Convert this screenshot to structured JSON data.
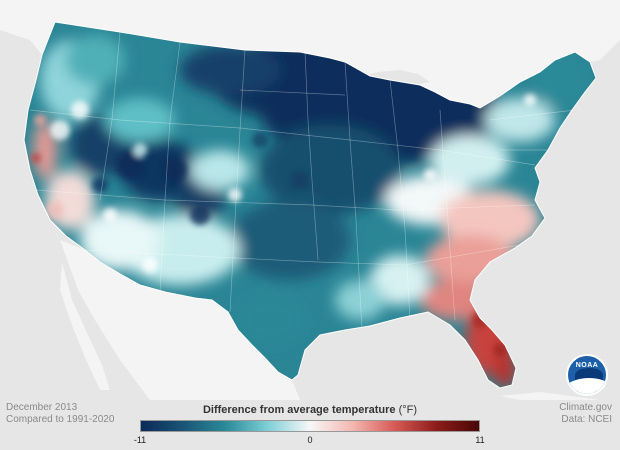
{
  "caption": {
    "period": "December 2013",
    "baseline": "Compared to 1991-2020"
  },
  "credit": {
    "source": "Climate.gov",
    "data": "Data: NCEI"
  },
  "legend": {
    "title": "Difference from average temperature",
    "unit": "(°F)",
    "min": "-11",
    "mid": "0",
    "max": "11",
    "colors": [
      "#0b2b58",
      "#1a5576",
      "#2a8a98",
      "#7fcfd6",
      "#f7f7f7",
      "#f4b8b2",
      "#d85a55",
      "#8c1c1a",
      "#4a0606"
    ]
  },
  "logo": {
    "text": "NOAA"
  },
  "map_colors": {
    "background": "#e6e6e6",
    "land_outside": "#f4f4f4",
    "water": "#e6e6e6",
    "deep_cold": "#0d2f5c",
    "cold": "#1f6b85",
    "cool": "#3c9aa6",
    "slightly_cool": "#9fdce0",
    "neutral": "#f3f8f8",
    "warm": "#f0b4ae",
    "hot": "#d0504c",
    "very_hot": "#a52a28"
  }
}
